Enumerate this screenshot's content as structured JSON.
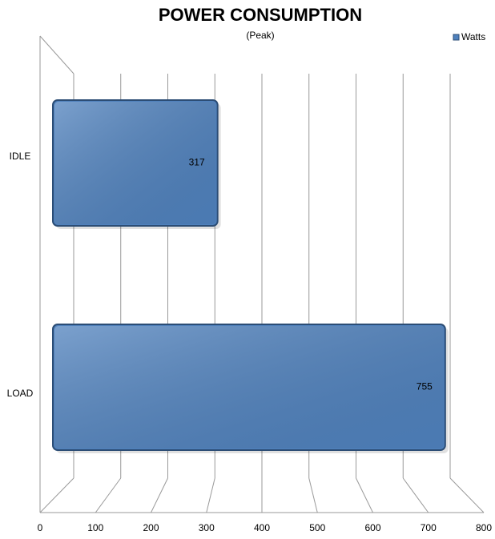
{
  "chart_data": {
    "type": "bar",
    "orientation": "horizontal",
    "title": "POWER CONSUMPTION",
    "subtitle": "(Peak)",
    "categories": [
      "IDLE",
      "LOAD"
    ],
    "series": [
      {
        "name": "Watts",
        "color": "#4f81bd",
        "values": [
          317,
          755
        ]
      }
    ],
    "xlim": [
      0,
      800
    ],
    "xticks": [
      0,
      100,
      200,
      300,
      400,
      500,
      600,
      700,
      800
    ],
    "grid": true,
    "legend": "top-right"
  }
}
